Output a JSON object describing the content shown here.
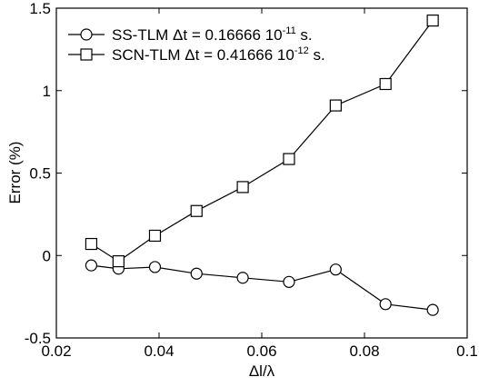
{
  "chart_data": {
    "type": "line",
    "title": "",
    "xlabel": "Δl/λ",
    "ylabel": "Error (%)",
    "xlim": [
      0.02,
      0.1
    ],
    "ylim": [
      -0.5,
      1.5
    ],
    "xticks": [
      0.02,
      0.04,
      0.06,
      0.08,
      0.1
    ],
    "xtick_labels": [
      "0.02",
      "0.04",
      "0.06",
      "0.08",
      "0.1"
    ],
    "yticks": [
      -0.5,
      0,
      0.5,
      1,
      1.5
    ],
    "ytick_labels": [
      "-0.5",
      "0",
      "0.5",
      "1",
      "1.5"
    ],
    "grid": false,
    "legend_position": "top-left",
    "series": [
      {
        "name": "SS-TLM",
        "legend_label": {
          "main": "SS-TLM Δt = 0.16666 10",
          "exponent": "-11",
          "suffix": " s."
        },
        "marker": "circle",
        "color": "#000000",
        "x": [
          0.0268,
          0.0321,
          0.0392,
          0.0473,
          0.0563,
          0.0653,
          0.0744,
          0.0841,
          0.0933
        ],
        "values": [
          -0.06,
          -0.08,
          -0.07,
          -0.11,
          -0.135,
          -0.16,
          -0.085,
          -0.295,
          -0.33
        ]
      },
      {
        "name": "SCN-TLM",
        "legend_label": {
          "main": "SCN-TLM Δt = 0.41666 10",
          "exponent": "-12",
          "suffix": " s."
        },
        "marker": "square",
        "color": "#000000",
        "x": [
          0.0268,
          0.0321,
          0.0392,
          0.0473,
          0.0563,
          0.0653,
          0.0744,
          0.0841,
          0.0933
        ],
        "values": [
          0.07,
          -0.035,
          0.12,
          0.27,
          0.415,
          0.585,
          0.91,
          1.04,
          1.425
        ]
      }
    ]
  }
}
